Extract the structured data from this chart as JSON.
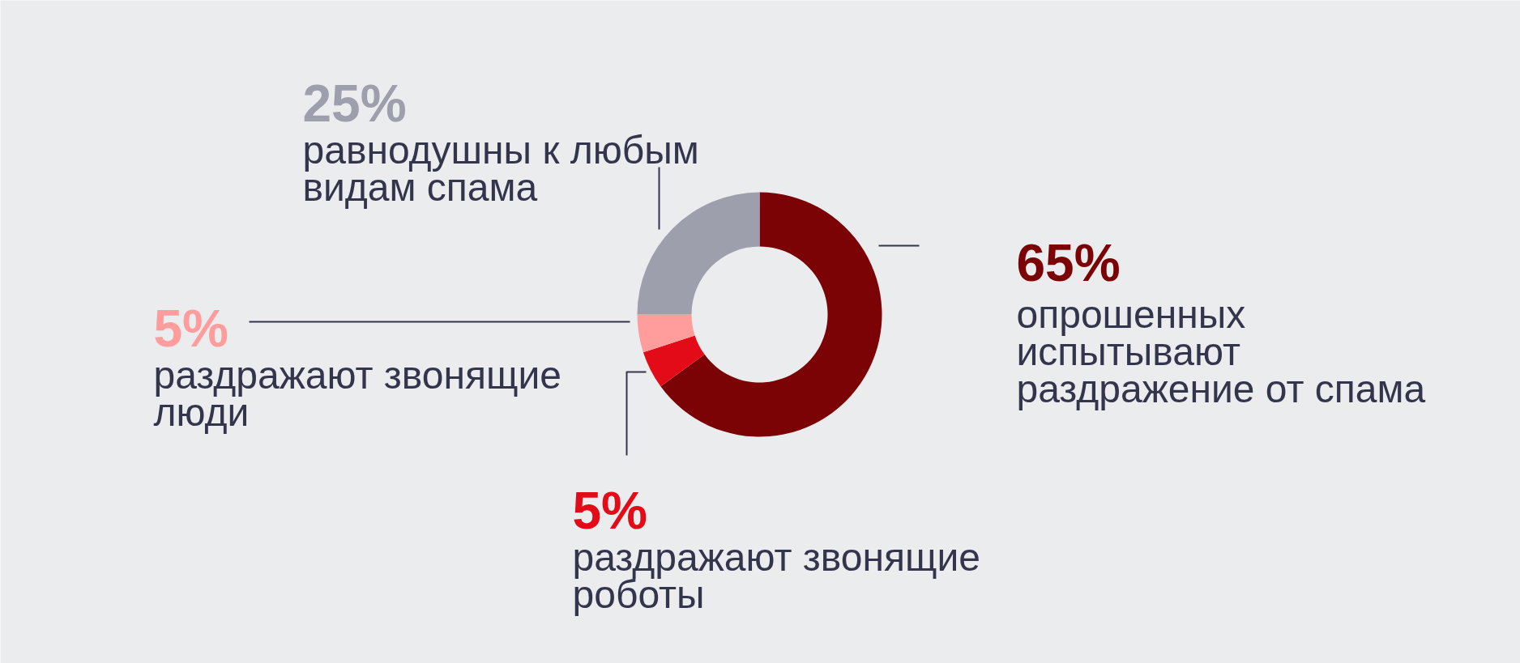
{
  "chart_data": {
    "type": "donut",
    "categories": [
      "опрошенных испытывают раздражение от спама",
      "раздражают звонящие роботы",
      "раздражают звонящие люди",
      "равнодушны к любым видам спама"
    ],
    "values": [
      65,
      5,
      5,
      25
    ],
    "colors": [
      "#7b0306",
      "#e30b17",
      "#ff9d9d",
      "#9d9fac"
    ],
    "value_labels": [
      "65%",
      "5%",
      "5%",
      "25%"
    ]
  }
}
